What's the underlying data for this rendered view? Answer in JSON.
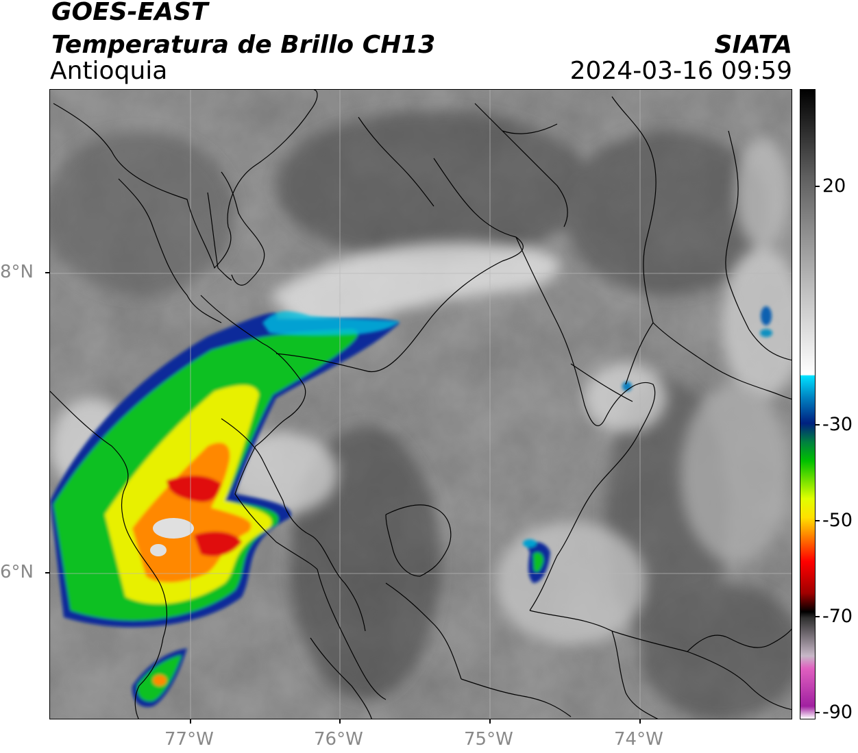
{
  "header": {
    "line1": "GOES-EAST",
    "line2": "Temperatura de Brillo CH13",
    "region": "Antioquia",
    "source": "SIATA",
    "datetime": "2024-03-16 09:59"
  },
  "map": {
    "lat_labels": [
      "8°N",
      "6°N"
    ],
    "lon_labels": [
      "77°W",
      "76°W",
      "75°W",
      "74°W"
    ],
    "colors": {
      "gray_bg": "#7a7a7a",
      "cloud_white": "#e8e8e8",
      "cold_blue": "#0a2a9a",
      "cyan": "#00bfe0",
      "green": "#11c020",
      "yellow": "#f0f000",
      "orange": "#ff8800",
      "red": "#e01010"
    }
  },
  "colorbar": {
    "tick_labels": [
      "20",
      "-30",
      "-50",
      "-70",
      "-90"
    ],
    "stops": [
      {
        "color": "#ffffff",
        "offset": 0
      },
      {
        "color": "#a020a0",
        "offset": 0.02
      },
      {
        "color": "#e060c0",
        "offset": 0.08
      },
      {
        "color": "#c8b8c8",
        "offset": 0.1
      },
      {
        "color": "#303030",
        "offset": 0.16
      },
      {
        "color": "#000000",
        "offset": 0.17
      },
      {
        "color": "#a00000",
        "offset": 0.2
      },
      {
        "color": "#ff0000",
        "offset": 0.25
      },
      {
        "color": "#ff8000",
        "offset": 0.29
      },
      {
        "color": "#ffe000",
        "offset": 0.32
      },
      {
        "color": "#e0ff00",
        "offset": 0.35
      },
      {
        "color": "#00c000",
        "offset": 0.41
      },
      {
        "color": "#008040",
        "offset": 0.44
      },
      {
        "color": "#002080",
        "offset": 0.47
      },
      {
        "color": "#0080c0",
        "offset": 0.51
      },
      {
        "color": "#00e0ff",
        "offset": 0.545
      },
      {
        "color": "#ffffff",
        "offset": 0.547
      },
      {
        "color": "#c0c0c0",
        "offset": 0.68
      },
      {
        "color": "#606060",
        "offset": 0.86
      },
      {
        "color": "#000000",
        "offset": 1
      }
    ]
  }
}
